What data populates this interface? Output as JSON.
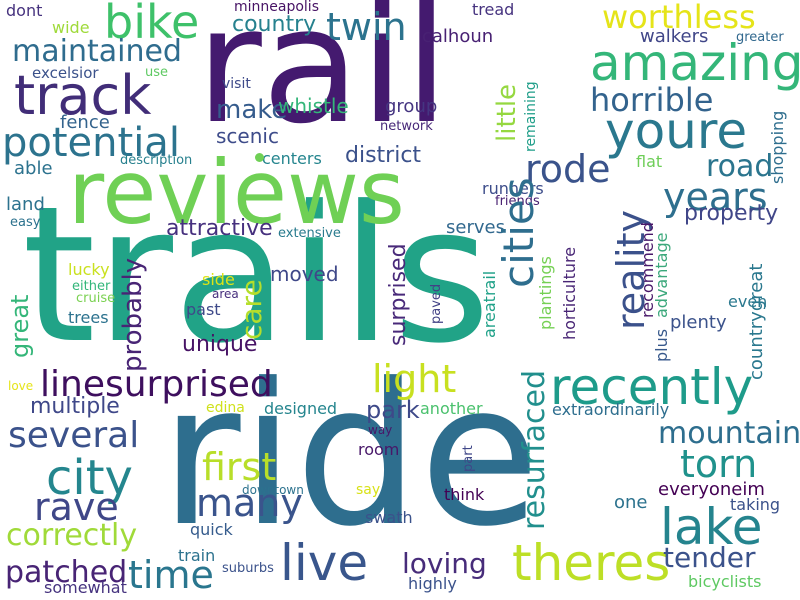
{
  "words": [
    {
      "text": "trails",
      "color": "#21a387"
    },
    {
      "text": "ride",
      "color": "#2e6e8e"
    },
    {
      "text": "rail",
      "color": "#441a6f"
    },
    {
      "text": "reviews",
      "color": "#6fd055"
    },
    {
      "text": "track",
      "color": "#412d78"
    },
    {
      "text": "bike",
      "color": "#3ec16a"
    },
    {
      "text": "amazing",
      "color": "#34b679"
    },
    {
      "text": "youre",
      "color": "#2a788e"
    },
    {
      "text": "recently",
      "color": "#1e9b8a"
    },
    {
      "text": "theres",
      "color": "#bddf26"
    },
    {
      "text": "live",
      "color": "#39568c"
    },
    {
      "text": "lake",
      "color": "#25848e"
    },
    {
      "text": "city",
      "color": "#24868e"
    },
    {
      "text": "linesurprised",
      "color": "#3e0f5e"
    },
    {
      "text": "potential",
      "color": "#2c738e"
    },
    {
      "text": "twin",
      "color": "#2c738e"
    },
    {
      "text": "maintained",
      "color": "#2f6c8e"
    },
    {
      "text": "horrible",
      "color": "#33638d"
    },
    {
      "text": "worthless",
      "color": "#e5e419"
    },
    {
      "text": "cities",
      "color": "#2e6e8e"
    },
    {
      "text": "rode",
      "color": "#3a538b"
    },
    {
      "text": "years",
      "color": "#2e6f8e"
    },
    {
      "text": "reality",
      "color": "#3b518b"
    },
    {
      "text": "road",
      "color": "#2b758e"
    },
    {
      "text": "light",
      "color": "#c8e020"
    },
    {
      "text": "first",
      "color": "#b8de29"
    },
    {
      "text": "several",
      "color": "#3b528b"
    },
    {
      "text": "many",
      "color": "#3a548c"
    },
    {
      "text": "rave",
      "color": "#3f4788"
    },
    {
      "text": "correctly",
      "color": "#a0da39"
    },
    {
      "text": "time",
      "color": "#2a768e"
    },
    {
      "text": "patched",
      "color": "#482475"
    },
    {
      "text": "loving",
      "color": "#472c7a"
    },
    {
      "text": "tender",
      "color": "#3b528b"
    },
    {
      "text": "torn",
      "color": "#20928c"
    },
    {
      "text": "mountain",
      "color": "#2e6e8e"
    },
    {
      "text": "resurfaced",
      "color": "#218f8d"
    },
    {
      "text": "probably",
      "color": "#482475"
    },
    {
      "text": "care",
      "color": "#b5de2b"
    },
    {
      "text": "great",
      "color": "#34b679"
    },
    {
      "text": "little",
      "color": "#95d840"
    },
    {
      "text": "make",
      "color": "#365c8d"
    },
    {
      "text": "country",
      "color": "#26818e"
    },
    {
      "text": "district",
      "color": "#3b518b"
    },
    {
      "text": "property",
      "color": "#404688"
    },
    {
      "text": "park",
      "color": "#3e4989"
    },
    {
      "text": "multiple",
      "color": "#3f4889"
    },
    {
      "text": "surprised",
      "color": "#482979"
    },
    {
      "text": "attractive",
      "color": "#46307e"
    },
    {
      "text": "unique",
      "color": "#471365"
    },
    {
      "text": "moved",
      "color": "#3f4889"
    },
    {
      "text": "scenic",
      "color": "#3e4c8a"
    },
    {
      "text": "whistle",
      "color": "#34b679"
    },
    {
      "text": "group",
      "color": "#453581"
    },
    {
      "text": "calhoun",
      "color": "#482173"
    },
    {
      "text": "fence",
      "color": "#33638d"
    },
    {
      "text": "able",
      "color": "#2c728e"
    },
    {
      "text": "land",
      "color": "#2c728e"
    },
    {
      "text": "excelsior",
      "color": "#3b528b"
    },
    {
      "text": "dont",
      "color": "#46327e"
    },
    {
      "text": "wide",
      "color": "#9fda3a"
    },
    {
      "text": "minneapolis",
      "color": "#471365"
    },
    {
      "text": "tread",
      "color": "#46337f"
    },
    {
      "text": "walkers",
      "color": "#404688"
    },
    {
      "text": "greater",
      "color": "#31688e"
    },
    {
      "text": "use",
      "color": "#5ec962"
    },
    {
      "text": "visit",
      "color": "#3e4a89"
    },
    {
      "text": "network",
      "color": "#482979"
    },
    {
      "text": "remaining",
      "color": "#1f9e89"
    },
    {
      "text": "centers",
      "color": "#25858e"
    },
    {
      "text": "description",
      "color": "#27808e"
    },
    {
      "text": "flat",
      "color": "#6ece58"
    },
    {
      "text": "shopping",
      "color": "#2e6e8e"
    },
    {
      "text": "runners",
      "color": "#3d4d8a"
    },
    {
      "text": "friends",
      "color": "#482071"
    },
    {
      "text": "easy",
      "color": "#2c728e"
    },
    {
      "text": "extensive",
      "color": "#297b8e"
    },
    {
      "text": "serves",
      "color": "#31688e"
    },
    {
      "text": "horticulture",
      "color": "#482575"
    },
    {
      "text": "recommend",
      "color": "#481769"
    },
    {
      "text": "plantings",
      "color": "#75d054"
    },
    {
      "text": "areatrail",
      "color": "#1fa188"
    },
    {
      "text": "plenty",
      "color": "#3b528b"
    },
    {
      "text": "even",
      "color": "#2a788e"
    },
    {
      "text": "countrygreat",
      "color": "#2a788e"
    },
    {
      "text": "plus",
      "color": "#38598c"
    },
    {
      "text": "advantage",
      "color": "#3ba87b"
    },
    {
      "text": "lucky",
      "color": "#cae11f"
    },
    {
      "text": "either",
      "color": "#32b67a"
    },
    {
      "text": "cruise",
      "color": "#7ad151"
    },
    {
      "text": "side",
      "color": "#dde318"
    },
    {
      "text": "area",
      "color": "#472f7d"
    },
    {
      "text": "past",
      "color": "#3e4989"
    },
    {
      "text": "trees",
      "color": "#2c728e"
    },
    {
      "text": "paved",
      "color": "#424186"
    },
    {
      "text": "love",
      "color": "#e5e419"
    },
    {
      "text": "edina",
      "color": "#d0e11c"
    },
    {
      "text": "designed",
      "color": "#25858e"
    },
    {
      "text": "another",
      "color": "#4ac16d"
    },
    {
      "text": "extraordinarily",
      "color": "#2e6e8e"
    },
    {
      "text": "way",
      "color": "#481769"
    },
    {
      "text": "room",
      "color": "#481769"
    },
    {
      "text": "part",
      "color": "#3f4788"
    },
    {
      "text": "say",
      "color": "#d8e219"
    },
    {
      "text": "downtown",
      "color": "#2c728e"
    },
    {
      "text": "think",
      "color": "#440154"
    },
    {
      "text": "swath",
      "color": "#3b528b"
    },
    {
      "text": "one",
      "color": "#2c728e"
    },
    {
      "text": "everyoneim",
      "color": "#440154"
    },
    {
      "text": "taking",
      "color": "#3b528b"
    },
    {
      "text": "quick",
      "color": "#365c8d"
    },
    {
      "text": "train",
      "color": "#2c728e"
    },
    {
      "text": "suburbs",
      "color": "#3b528b"
    },
    {
      "text": "somewhat",
      "color": "#46337f"
    },
    {
      "text": "highly",
      "color": "#3b528b"
    },
    {
      "text": "bicyclists",
      "color": "#5ec962"
    }
  ]
}
